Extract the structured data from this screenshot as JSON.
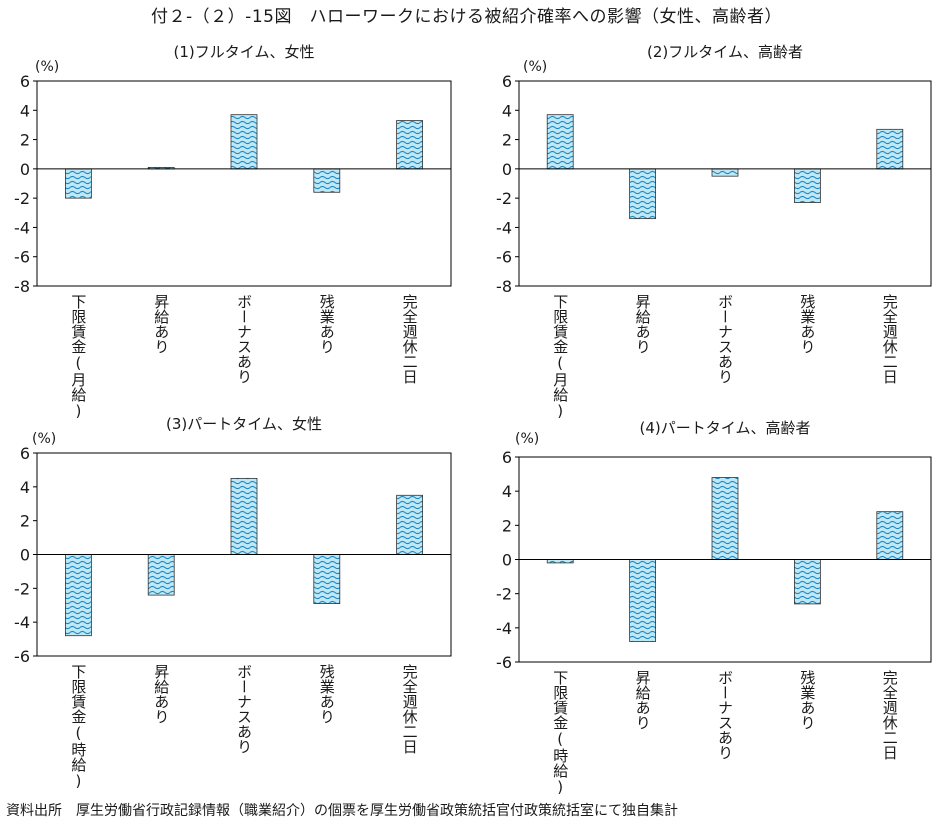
{
  "figure": {
    "title": "付２-（２）-15図　ハローワークにおける被紹介確率への影響（女性、高齢者）",
    "source": "資料出所　厚生労働省行政記録情報（職業紹介）の個票を厚生労働省政策統括官付政策統括室にて独自集計"
  },
  "chart_data": [
    {
      "type": "bar",
      "title": "(1)フルタイム、女性",
      "ylabel": "(%)",
      "ylim": [
        -8,
        6
      ],
      "yticks": [
        6,
        4,
        2,
        0,
        -2,
        -4,
        -6,
        -8
      ],
      "categories": [
        "下限賃金(月給)",
        "昇給あり",
        "ボーナスあり",
        "残業あり",
        "完全週休二日"
      ],
      "values": [
        -2.0,
        0.1,
        3.7,
        -1.6,
        3.3
      ],
      "grid": false,
      "pattern": "wave"
    },
    {
      "type": "bar",
      "title": "(2)フルタイム、高齢者",
      "ylabel": "(%)",
      "ylim": [
        -8,
        6
      ],
      "yticks": [
        6,
        4,
        2,
        0,
        -2,
        -4,
        -6,
        -8
      ],
      "categories": [
        "下限賃金(月給)",
        "昇給あり",
        "ボーナスあり",
        "残業あり",
        "完全週休二日"
      ],
      "values": [
        3.7,
        -3.4,
        -0.5,
        -2.3,
        2.7
      ],
      "grid": false,
      "pattern": "wave"
    },
    {
      "type": "bar",
      "title": "(3)パートタイム、女性",
      "ylabel": "(%)",
      "ylim": [
        -6,
        6
      ],
      "yticks": [
        6,
        4,
        2,
        0,
        -2,
        -4,
        -6
      ],
      "categories": [
        "下限賃金(時給)",
        "昇給あり",
        "ボーナスあり",
        "残業あり",
        "完全週休二日"
      ],
      "values": [
        -4.8,
        -2.4,
        4.5,
        -2.9,
        3.5
      ],
      "grid": false,
      "pattern": "wave"
    },
    {
      "type": "bar",
      "title": "(4)パートタイム、高齢者",
      "ylabel": "(%)",
      "ylim": [
        -6,
        6
      ],
      "yticks": [
        6,
        4,
        2,
        0,
        -2,
        -4,
        -6
      ],
      "categories": [
        "下限賃金(時給)",
        "昇給あり",
        "ボーナスあり",
        "残業あり",
        "完全週休二日"
      ],
      "values": [
        -0.2,
        -4.8,
        4.8,
        -2.6,
        2.8
      ],
      "grid": false,
      "pattern": "wave"
    }
  ],
  "colors": {
    "bar_fill": "#bfe8f6",
    "bar_wave": "#1f87c0",
    "axis": "#000000"
  }
}
